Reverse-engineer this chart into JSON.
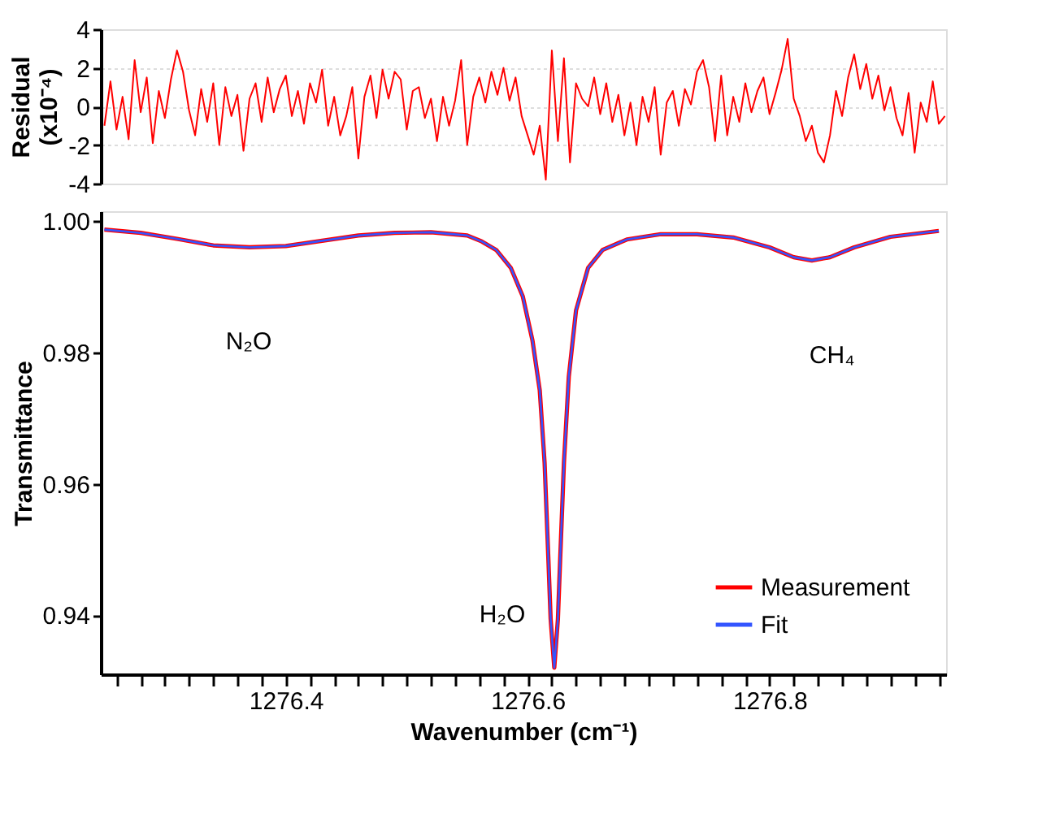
{
  "chart_data": [
    {
      "type": "line",
      "ylabel": "Residual\n(x10⁻⁴)",
      "xlim": [
        1276.247,
        1276.946
      ],
      "ylim": [
        -4,
        4
      ],
      "yticks": [
        -4,
        -2,
        0,
        2,
        4
      ],
      "grid": "y",
      "tick_labels": "y",
      "series": [
        {
          "color": "#ff0000",
          "x": [
            1276.25,
            1276.255,
            1276.26,
            1276.265,
            1276.27,
            1276.275,
            1276.28,
            1276.285,
            1276.29,
            1276.295,
            1276.3,
            1276.305,
            1276.31,
            1276.315,
            1276.32,
            1276.325,
            1276.33,
            1276.335,
            1276.34,
            1276.345,
            1276.35,
            1276.355,
            1276.36,
            1276.365,
            1276.37,
            1276.375,
            1276.38,
            1276.385,
            1276.39,
            1276.395,
            1276.4,
            1276.405,
            1276.41,
            1276.415,
            1276.42,
            1276.425,
            1276.43,
            1276.435,
            1276.44,
            1276.445,
            1276.45,
            1276.455,
            1276.46,
            1276.465,
            1276.47,
            1276.475,
            1276.48,
            1276.485,
            1276.49,
            1276.495,
            1276.5,
            1276.505,
            1276.51,
            1276.515,
            1276.52,
            1276.525,
            1276.53,
            1276.535,
            1276.54,
            1276.545,
            1276.55,
            1276.555,
            1276.56,
            1276.565,
            1276.57,
            1276.575,
            1276.58,
            1276.585,
            1276.59,
            1276.595,
            1276.6,
            1276.605,
            1276.61,
            1276.615,
            1276.62,
            1276.625,
            1276.63,
            1276.635,
            1276.64,
            1276.645,
            1276.65,
            1276.655,
            1276.66,
            1276.665,
            1276.67,
            1276.675,
            1276.68,
            1276.685,
            1276.69,
            1276.695,
            1276.7,
            1276.705,
            1276.71,
            1276.715,
            1276.72,
            1276.725,
            1276.73,
            1276.735,
            1276.74,
            1276.745,
            1276.75,
            1276.755,
            1276.76,
            1276.765,
            1276.77,
            1276.775,
            1276.78,
            1276.785,
            1276.79,
            1276.795,
            1276.8,
            1276.805,
            1276.81,
            1276.815,
            1276.82,
            1276.825,
            1276.83,
            1276.835,
            1276.84,
            1276.845,
            1276.85,
            1276.855,
            1276.86,
            1276.865,
            1276.87,
            1276.875,
            1276.88,
            1276.885,
            1276.89,
            1276.895,
            1276.9,
            1276.905,
            1276.91,
            1276.915,
            1276.92,
            1276.925,
            1276.93,
            1276.935,
            1276.94,
            1276.945
          ],
          "values": [
            -1,
            1.3,
            -1.2,
            0.5,
            -1.7,
            2.4,
            -0.3,
            1.5,
            -1.9,
            0.8,
            -0.6,
            1.4,
            2.9,
            1.8,
            -0.2,
            -1.5,
            0.9,
            -0.8,
            1.2,
            -2.0,
            1.0,
            -0.5,
            0.6,
            -2.3,
            0.4,
            1.2,
            -0.8,
            1.5,
            -0.3,
            0.9,
            1.6,
            -0.5,
            0.8,
            -0.9,
            1.2,
            0.2,
            1.9,
            -1.0,
            0.5,
            -1.5,
            -0.5,
            1.0,
            -2.7,
            0.5,
            1.6,
            -0.6,
            1.9,
            0.4,
            1.8,
            1.4,
            -1.2,
            0.8,
            1.0,
            -0.6,
            0.4,
            -1.8,
            0.5,
            -1.0,
            0.3,
            2.4,
            -2.0,
            0.5,
            1.5,
            0.2,
            1.8,
            0.6,
            2.0,
            0.3,
            1.5,
            -0.5,
            -1.5,
            -2.5,
            -1.0,
            -3.8,
            2.9,
            -1.8,
            2.5,
            -2.9,
            1.2,
            0.4,
            0.0,
            1.5,
            -0.4,
            1.2,
            -0.8,
            0.6,
            -1.5,
            0.2,
            -2.0,
            0.5,
            -0.8,
            1.0,
            -2.5,
            0.2,
            0.8,
            -1.0,
            0.9,
            0.1,
            1.8,
            2.4,
            1.0,
            -1.8,
            1.6,
            -1.5,
            0.5,
            -0.8,
            1.2,
            -0.3,
            0.8,
            1.5,
            -0.4,
            0.7,
            1.9,
            3.5,
            0.4,
            -0.5,
            -1.8,
            -1.0,
            -2.4,
            -2.9,
            -1.5,
            0.8,
            -0.5,
            1.5,
            2.7,
            0.9,
            2.2,
            0.4,
            1.6,
            -0.2,
            1.0,
            -0.6,
            -1.5,
            0.7,
            -2.4,
            0.2,
            -0.8,
            1.3,
            -0.9,
            -0.5
          ]
        }
      ]
    },
    {
      "type": "line",
      "xlabel": "Wavenumber (cm⁻¹)",
      "ylabel": "Transmittance",
      "xlim": [
        1276.247,
        1276.946
      ],
      "ylim": [
        0.931,
        1.0015
      ],
      "xticks": [
        {
          "value": 1276.26,
          "label": null
        },
        {
          "value": 1276.28,
          "label": null
        },
        {
          "value": 1276.3,
          "label": null
        },
        {
          "value": 1276.32,
          "label": null
        },
        {
          "value": 1276.34,
          "label": null
        },
        {
          "value": 1276.36,
          "label": null
        },
        {
          "value": 1276.38,
          "label": null
        },
        1276.4,
        {
          "value": 1276.42,
          "label": null
        },
        {
          "value": 1276.44,
          "label": null
        },
        {
          "value": 1276.46,
          "label": null
        },
        {
          "value": 1276.48,
          "label": null
        },
        {
          "value": 1276.5,
          "label": null
        },
        {
          "value": 1276.52,
          "label": null
        },
        {
          "value": 1276.54,
          "label": null
        },
        {
          "value": 1276.56,
          "label": null
        },
        {
          "value": 1276.58,
          "label": null
        },
        1276.6,
        {
          "value": 1276.62,
          "label": null
        },
        {
          "value": 1276.64,
          "label": null
        },
        {
          "value": 1276.66,
          "label": null
        },
        {
          "value": 1276.68,
          "label": null
        },
        {
          "value": 1276.7,
          "label": null
        },
        {
          "value": 1276.72,
          "label": null
        },
        {
          "value": 1276.74,
          "label": null
        },
        {
          "value": 1276.76,
          "label": null
        },
        {
          "value": 1276.78,
          "label": null
        },
        1276.8,
        {
          "value": 1276.82,
          "label": null
        },
        {
          "value": 1276.84,
          "label": null
        },
        {
          "value": 1276.86,
          "label": null
        },
        {
          "value": 1276.88,
          "label": null
        },
        {
          "value": 1276.9,
          "label": null
        },
        {
          "value": 1276.92,
          "label": null
        },
        {
          "value": 1276.94,
          "label": null
        }
      ],
      "yticks": [
        0.94,
        0.96,
        0.98,
        {
          "value": 1.0,
          "label": "1.00"
        }
      ],
      "grid": false,
      "legend": "bottom right",
      "annotations": [
        "N₂O",
        "H₂O",
        "CH₄"
      ],
      "series": [
        {
          "name": "Measurement",
          "color": "#ff0000",
          "x": [
            1276.25,
            1276.28,
            1276.31,
            1276.34,
            1276.37,
            1276.4,
            1276.43,
            1276.46,
            1276.49,
            1276.52,
            1276.55,
            1276.562,
            1276.574,
            1276.586,
            1276.596,
            1276.604,
            1276.61,
            1276.614,
            1276.617,
            1276.619,
            1276.622,
            1276.625,
            1276.627,
            1276.63,
            1276.634,
            1276.64,
            1276.65,
            1276.662,
            1276.682,
            1276.71,
            1276.74,
            1276.77,
            1276.8,
            1276.82,
            1276.835,
            1276.85,
            1276.87,
            1276.9,
            1276.94
          ],
          "values": [
            0.9987,
            0.9982,
            0.9973,
            0.9963,
            0.996,
            0.9962,
            0.997,
            0.9978,
            0.9982,
            0.9983,
            0.9978,
            0.9969,
            0.9956,
            0.9929,
            0.9885,
            0.9818,
            0.9742,
            0.9632,
            0.9491,
            0.9394,
            0.932,
            0.9394,
            0.9491,
            0.9632,
            0.9763,
            0.9864,
            0.9929,
            0.9956,
            0.9972,
            0.998,
            0.998,
            0.9975,
            0.996,
            0.9945,
            0.994,
            0.9945,
            0.996,
            0.9976,
            0.9985
          ]
        },
        {
          "name": "Fit",
          "color": "#3355ff",
          "x": [
            1276.25,
            1276.28,
            1276.31,
            1276.34,
            1276.37,
            1276.4,
            1276.43,
            1276.46,
            1276.49,
            1276.52,
            1276.55,
            1276.562,
            1276.574,
            1276.586,
            1276.596,
            1276.604,
            1276.61,
            1276.614,
            1276.617,
            1276.619,
            1276.622,
            1276.625,
            1276.627,
            1276.63,
            1276.634,
            1276.64,
            1276.65,
            1276.662,
            1276.682,
            1276.71,
            1276.74,
            1276.77,
            1276.8,
            1276.82,
            1276.835,
            1276.85,
            1276.87,
            1276.9,
            1276.94
          ],
          "values": [
            0.9987,
            0.9982,
            0.9973,
            0.9963,
            0.996,
            0.9962,
            0.997,
            0.9978,
            0.9982,
            0.9983,
            0.9978,
            0.9969,
            0.9956,
            0.9929,
            0.9885,
            0.9818,
            0.9742,
            0.9632,
            0.9491,
            0.9394,
            0.932,
            0.9394,
            0.9491,
            0.9632,
            0.9763,
            0.9864,
            0.9929,
            0.9956,
            0.9972,
            0.998,
            0.998,
            0.9975,
            0.996,
            0.9945,
            0.994,
            0.9945,
            0.996,
            0.9976,
            0.9985
          ]
        }
      ]
    }
  ]
}
